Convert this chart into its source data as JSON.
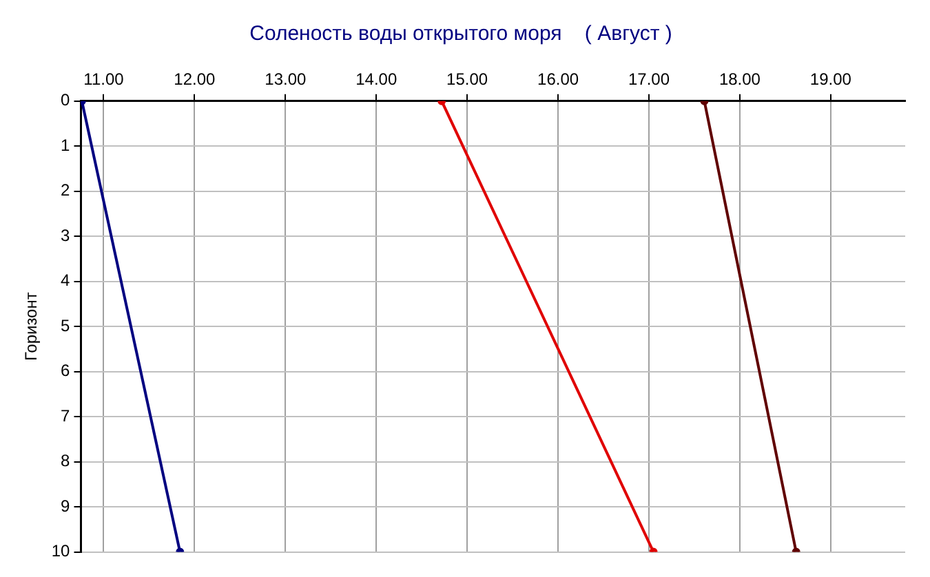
{
  "chart_data": {
    "type": "line",
    "title": "Соленость воды открытого моря    ( Август )",
    "ylabel": "Горизонт",
    "xlim": [
      10.75,
      19.82
    ],
    "xticks": [
      {
        "value": 11,
        "label": "11.00"
      },
      {
        "value": 12,
        "label": "12.00"
      },
      {
        "value": 13,
        "label": "13.00"
      },
      {
        "value": 14,
        "label": "14.00"
      },
      {
        "value": 15,
        "label": "15.00"
      },
      {
        "value": 16,
        "label": "16.00"
      },
      {
        "value": 17,
        "label": "17.00"
      },
      {
        "value": 18,
        "label": "18.00"
      },
      {
        "value": 19,
        "label": "19.00"
      }
    ],
    "ylim": [
      10,
      0
    ],
    "yticks": [
      0,
      1,
      2,
      3,
      4,
      5,
      6,
      7,
      8,
      9,
      10
    ],
    "grid": true,
    "marker": "circle",
    "line_style": "solid",
    "series": [
      {
        "color": "#000080",
        "x": [
          10.76,
          11.84
        ],
        "values": [
          0,
          10
        ]
      },
      {
        "color": "#e00000",
        "x": [
          14.72,
          17.05
        ],
        "values": [
          0,
          10
        ]
      },
      {
        "color": "#600000",
        "x": [
          17.61,
          18.62
        ],
        "values": [
          0,
          10
        ]
      }
    ]
  }
}
